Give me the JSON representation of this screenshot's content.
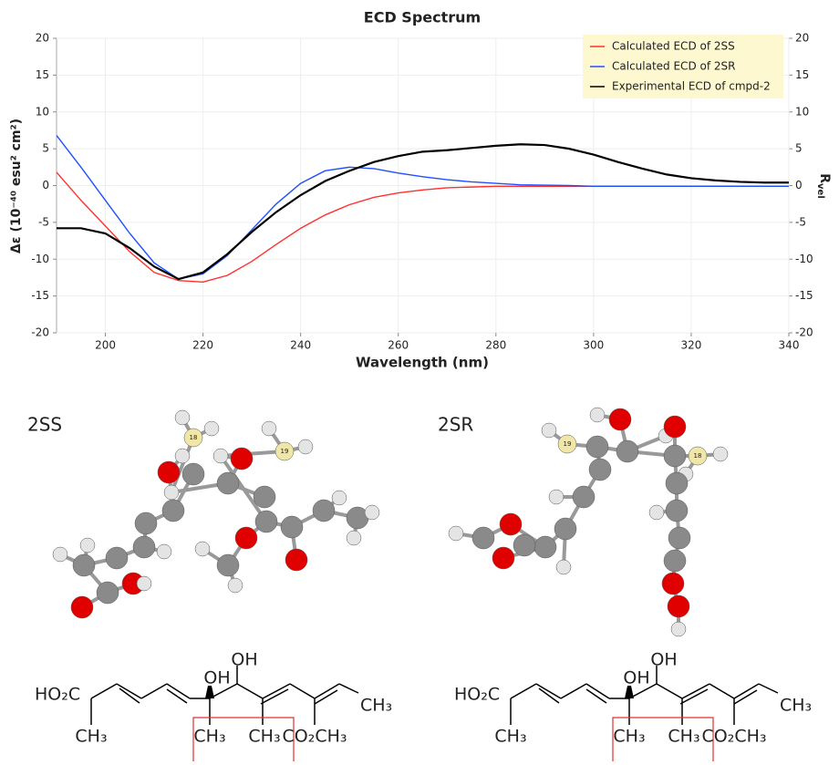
{
  "chart_data": {
    "type": "line",
    "title": "ECD Spectrum",
    "xlabel": "Wavelength (nm)",
    "ylabel": "Δε (10⁻⁴⁰ esu² cm²)",
    "y2label": [
      "R",
      "vel"
    ],
    "x": [
      190,
      195,
      200,
      205,
      210,
      215,
      220,
      225,
      230,
      235,
      240,
      245,
      250,
      255,
      260,
      265,
      270,
      275,
      280,
      285,
      290,
      295,
      300,
      305,
      310,
      315,
      320,
      325,
      330,
      335,
      340
    ],
    "series": [
      {
        "name": "Calculated ECD of 2SS",
        "color": "#ff3030",
        "values": [
          1.8,
          -2,
          -5.5,
          -9,
          -11.8,
          -12.9,
          -13.1,
          -12.2,
          -10.3,
          -8,
          -5.8,
          -4,
          -2.6,
          -1.6,
          -1,
          -0.6,
          -0.3,
          -0.2,
          -0.1,
          -0.1,
          -0.1,
          -0.1,
          -0.1,
          -0.1,
          -0.1,
          -0.1,
          -0.1,
          -0.1,
          -0.1,
          -0.1,
          -0.1
        ]
      },
      {
        "name": "Calculated ECD of 2SR",
        "color": "#2050ff",
        "values": [
          6.8,
          2.5,
          -2,
          -6.5,
          -10.5,
          -12.7,
          -12,
          -9.5,
          -6,
          -2.5,
          0.3,
          2,
          2.5,
          2.3,
          1.7,
          1.2,
          0.8,
          0.5,
          0.3,
          0.1,
          0.05,
          0,
          -0.1,
          -0.1,
          -0.1,
          -0.1,
          -0.1,
          -0.1,
          -0.1,
          -0.1,
          -0.1
        ]
      },
      {
        "name": "Experimental ECD of cmpd-2",
        "color": "#000000",
        "values": [
          -5.8,
          -5.8,
          -6.5,
          -8.5,
          -11,
          -12.7,
          -11.8,
          -9.3,
          -6.3,
          -3.6,
          -1.3,
          0.6,
          2,
          3.2,
          4,
          4.6,
          4.8,
          5.1,
          5.4,
          5.6,
          5.5,
          5,
          4.2,
          3.2,
          2.3,
          1.5,
          1,
          0.7,
          0.5,
          0.4,
          0.4
        ]
      }
    ],
    "xlim": [
      190,
      340
    ],
    "ylim": [
      -20,
      20
    ],
    "y2lim": [
      -20,
      20
    ],
    "xticks": [
      200,
      220,
      240,
      260,
      280,
      300,
      320,
      340
    ],
    "yticks": [
      -20,
      -15,
      -10,
      -5,
      0,
      5,
      10,
      15,
      20
    ],
    "y2ticks": [
      -20,
      -15,
      -10,
      -5,
      0,
      5,
      10,
      15,
      20
    ],
    "grid": true,
    "legend": "upper right"
  },
  "molecules": [
    {
      "label": "2SS",
      "atom_labels": [
        "18",
        "19"
      ],
      "structure": {
        "acid": "HO₂C",
        "methyls": [
          "CH₃",
          "CH₃",
          "CH₃",
          "CH₃"
        ],
        "hydroxyls": [
          "OH",
          "OH"
        ],
        "ester": "CO₂CH₃"
      }
    },
    {
      "label": "2SR",
      "atom_labels": [
        "19",
        "18"
      ],
      "structure": {
        "acid": "HO₂C",
        "methyls": [
          "CH₃",
          "CH₃",
          "CH₃",
          "CH₃"
        ],
        "hydroxyls": [
          "OH",
          "OH"
        ],
        "ester": "CO₂CH₃"
      }
    }
  ]
}
